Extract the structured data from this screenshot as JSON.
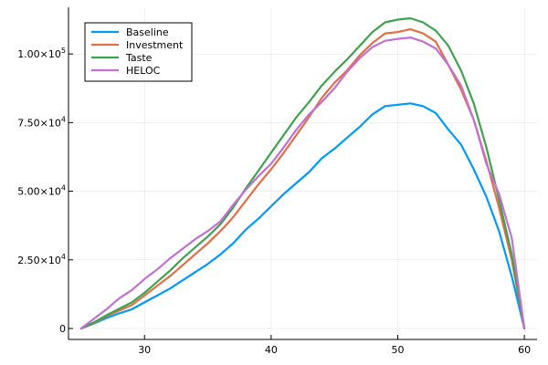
{
  "chart_data": {
    "type": "line",
    "title": "",
    "xlabel": "",
    "ylabel": "",
    "xlim": [
      24.0,
      61.0
    ],
    "ylim": [
      -4000,
      117000
    ],
    "grid": true,
    "legend_position": "top-left",
    "x_ticks": [
      {
        "value": 30,
        "label": "30"
      },
      {
        "value": 40,
        "label": "40"
      },
      {
        "value": 50,
        "label": "50"
      },
      {
        "value": 60,
        "label": "60"
      }
    ],
    "y_ticks": [
      {
        "value": 0,
        "mantissa": "0",
        "exponent": ""
      },
      {
        "value": 25000,
        "mantissa": "2.50×10",
        "exponent": "4"
      },
      {
        "value": 50000,
        "mantissa": "5.00×10",
        "exponent": "4"
      },
      {
        "value": 75000,
        "mantissa": "7.50×10",
        "exponent": "4"
      },
      {
        "value": 100000,
        "mantissa": "1.00×10",
        "exponent": "5"
      }
    ],
    "x": [
      25,
      26,
      27,
      28,
      29,
      30,
      31,
      32,
      33,
      34,
      35,
      36,
      37,
      38,
      39,
      40,
      41,
      42,
      43,
      44,
      45,
      46,
      47,
      48,
      49,
      50,
      51,
      52,
      53,
      54,
      55,
      56,
      57,
      58,
      59,
      60
    ],
    "series": [
      {
        "name": "Baseline",
        "color": "#009af9",
        "values": [
          0,
          1800,
          3800,
          5500,
          7000,
          9500,
          12000,
          14500,
          17500,
          20500,
          23500,
          27000,
          31000,
          36000,
          40000,
          44500,
          49000,
          53000,
          57000,
          62000,
          65500,
          69500,
          73500,
          78000,
          81000,
          81500,
          82000,
          81000,
          78500,
          72500,
          67000,
          58000,
          48000,
          35500,
          19000,
          0
        ]
      },
      {
        "name": "Investment",
        "color": "#e26f46",
        "values": [
          0,
          2000,
          4500,
          6500,
          8500,
          12000,
          15500,
          19000,
          23000,
          27000,
          31000,
          35500,
          40500,
          46500,
          52500,
          58000,
          64000,
          70500,
          77000,
          84000,
          89500,
          94000,
          99500,
          104000,
          107500,
          108000,
          109000,
          107500,
          104500,
          96000,
          87000,
          76000,
          61000,
          44000,
          25000,
          0
        ]
      },
      {
        "name": "Taste",
        "color": "#3da44d",
        "values": [
          0,
          2200,
          4800,
          7200,
          9500,
          13000,
          17000,
          21000,
          25500,
          29500,
          33500,
          38000,
          44000,
          51000,
          57500,
          64000,
          70500,
          77000,
          82500,
          88500,
          93500,
          98000,
          103000,
          108000,
          111500,
          112500,
          113000,
          111500,
          108500,
          103000,
          94000,
          82000,
          66000,
          47000,
          27000,
          0
        ]
      },
      {
        "name": "HELOC",
        "color": "#c271d2",
        "values": [
          0,
          3500,
          7000,
          11000,
          14000,
          18000,
          21500,
          25500,
          29000,
          32500,
          35500,
          39000,
          45000,
          50500,
          55500,
          60000,
          66000,
          72500,
          78000,
          82500,
          87500,
          93500,
          98500,
          102500,
          104800,
          105500,
          106000,
          104500,
          102000,
          96000,
          88500,
          76000,
          60000,
          49000,
          33000,
          0
        ]
      }
    ]
  }
}
